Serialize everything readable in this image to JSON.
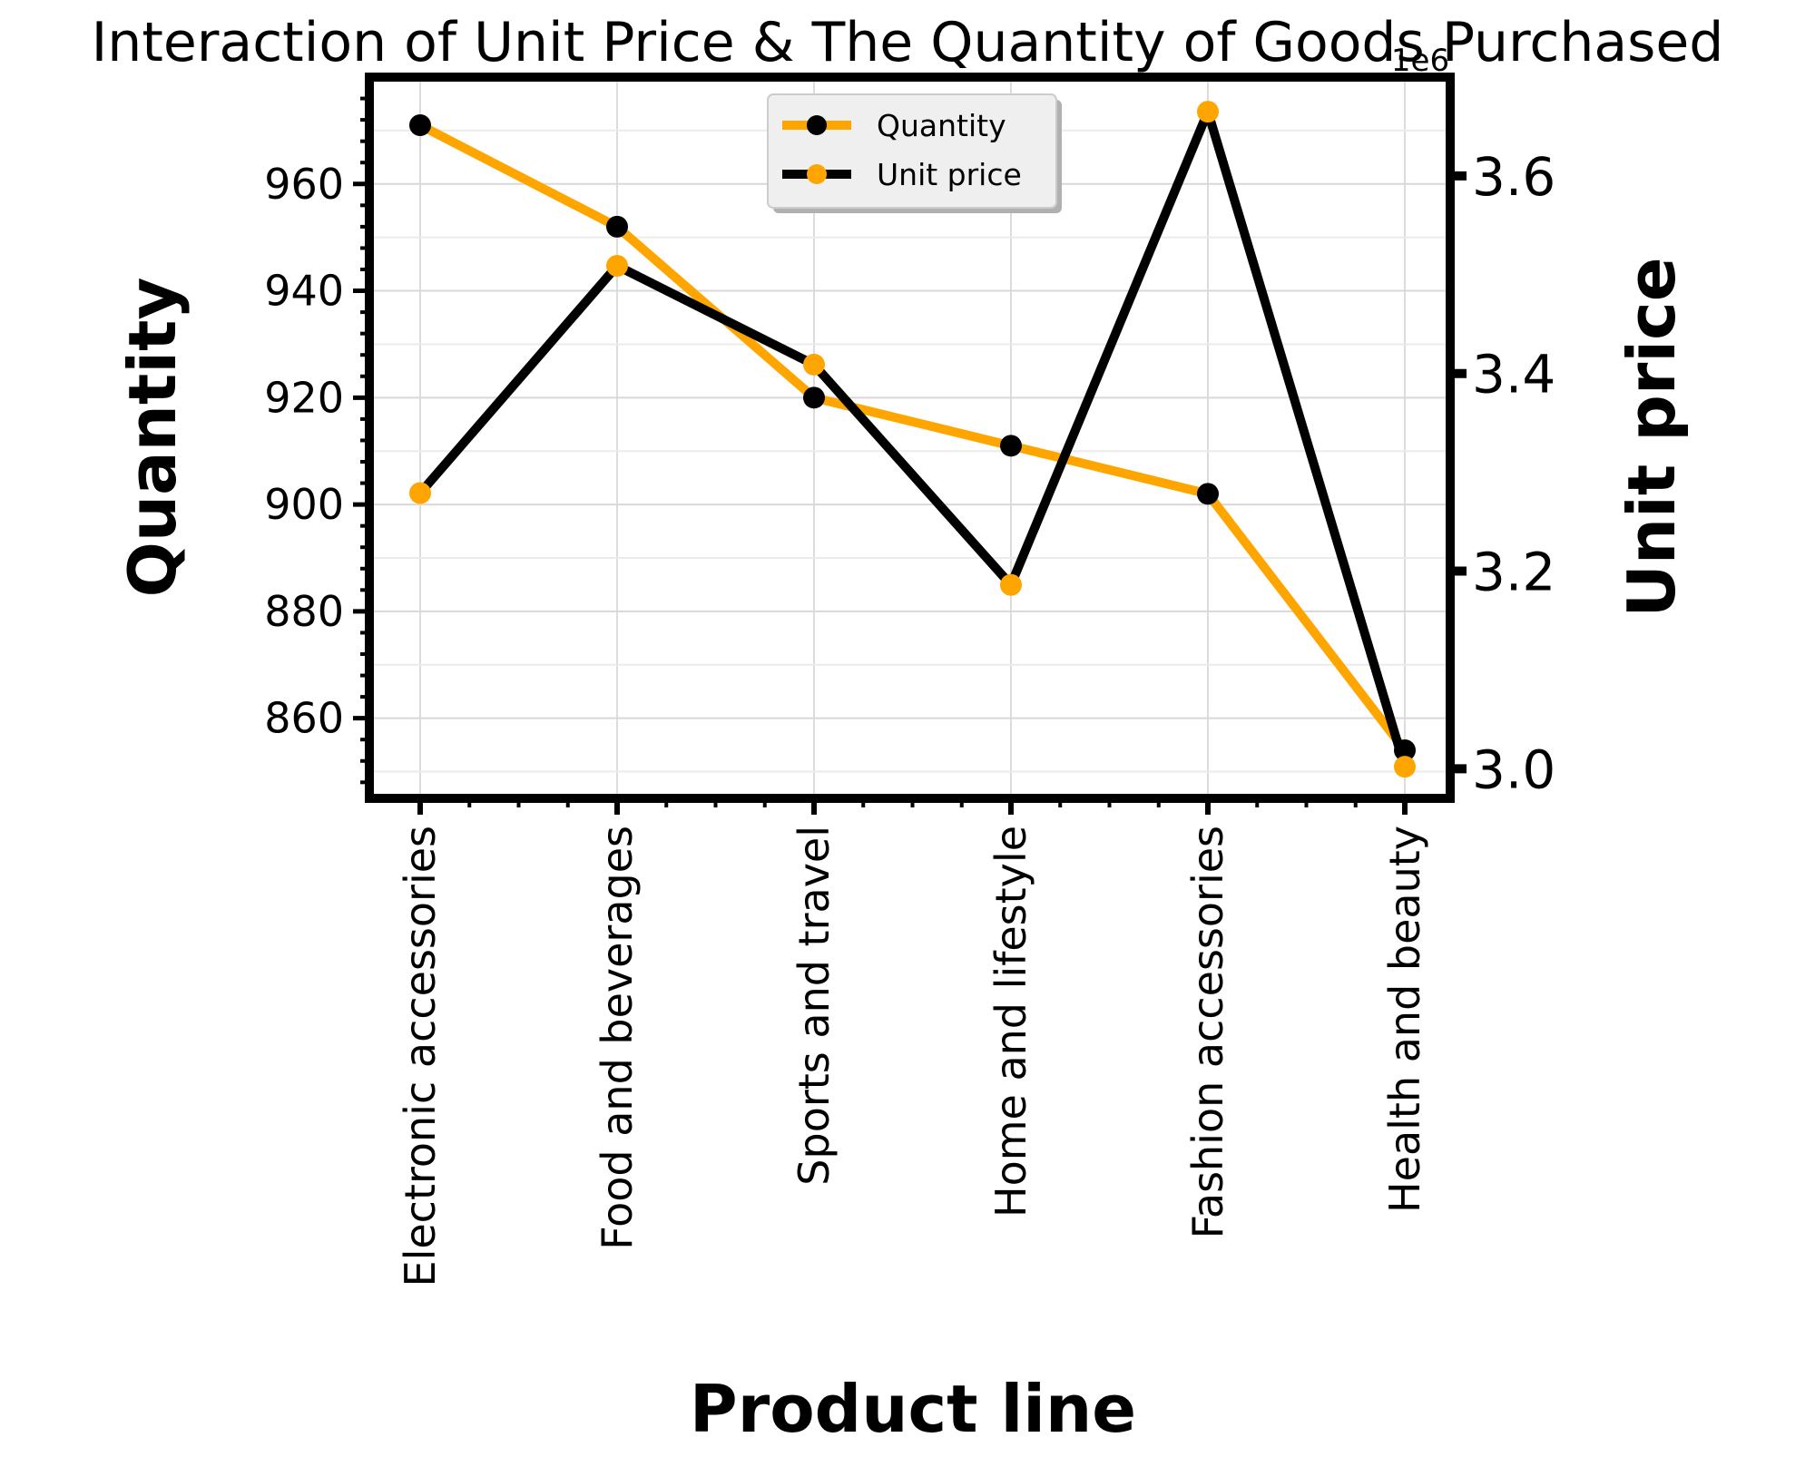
{
  "chart_data": {
    "type": "line",
    "title": "Interaction of Unit Price & The Quantity of Goods Purchased",
    "xlabel": "Product line",
    "ylabel_left": "Quantity",
    "ylabel_right": "Unit price",
    "right_axis_offset_label": "1e6",
    "categories": [
      "Electronic accessories",
      "Food and beverages",
      "Sports and travel",
      "Home and lifestyle",
      "Fashion accessories",
      "Health and beauty"
    ],
    "series": [
      {
        "name": "Quantity",
        "axis": "left",
        "line_color": "#ffa500",
        "marker_color": "#000000",
        "values": [
          971,
          952,
          920,
          911,
          902,
          854
        ]
      },
      {
        "name": "Unit price",
        "axis": "right",
        "line_color": "#000000",
        "marker_color": "#ffa500",
        "values": [
          3279000,
          3509000,
          3409000,
          3186000,
          3665000,
          3002000
        ]
      }
    ],
    "ylim_left": [
      845,
      980
    ],
    "yticks_left": [
      "860",
      "880",
      "900",
      "920",
      "940",
      "960"
    ],
    "ylim_right": [
      2970000,
      3700000
    ],
    "yticks_right": [
      "3.0",
      "3.2",
      "3.4",
      "3.6"
    ],
    "grid": true,
    "legend_position": "upper center"
  }
}
